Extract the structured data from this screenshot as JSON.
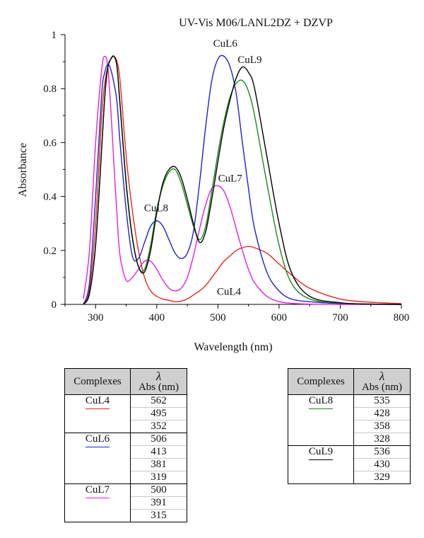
{
  "chart_data": {
    "type": "line",
    "title": "UV-Vis M06/LANL2DZ + DZVP",
    "xlabel": "Wavelength (nm)",
    "ylabel": "Absorbance",
    "xlim": [
      250,
      800
    ],
    "ylim": [
      0,
      1
    ],
    "xticks": [
      300,
      400,
      500,
      600,
      700,
      800
    ],
    "yticks": [
      0,
      0.2,
      0.4,
      0.6,
      0.8,
      1
    ],
    "ytick_labels": [
      "0",
      "0.2",
      "0.4",
      "0.6",
      "0.8",
      "1"
    ],
    "grid": false,
    "x": [
      280,
      290,
      300,
      310,
      315,
      320,
      325,
      330,
      335,
      340,
      350,
      360,
      370,
      380,
      390,
      400,
      410,
      420,
      430,
      440,
      450,
      460,
      470,
      480,
      490,
      500,
      510,
      520,
      530,
      540,
      550,
      560,
      580,
      600,
      620,
      650,
      700,
      750,
      800
    ],
    "series": [
      {
        "name": "CuL4",
        "color": "#e8281f",
        "values": [
          0.0,
          0.06,
          0.3,
          0.7,
          0.82,
          0.88,
          0.91,
          0.92,
          0.9,
          0.83,
          0.55,
          0.35,
          0.2,
          0.1,
          0.05,
          0.03,
          0.02,
          0.015,
          0.01,
          0.012,
          0.02,
          0.035,
          0.05,
          0.07,
          0.1,
          0.13,
          0.16,
          0.18,
          0.2,
          0.21,
          0.215,
          0.21,
          0.19,
          0.15,
          0.11,
          0.06,
          0.02,
          0.008,
          0.003
        ]
      },
      {
        "name": "CuL6",
        "color": "#2020d0",
        "values": [
          0.0,
          0.08,
          0.4,
          0.78,
          0.86,
          0.89,
          0.87,
          0.82,
          0.75,
          0.6,
          0.35,
          0.18,
          0.17,
          0.23,
          0.29,
          0.31,
          0.29,
          0.24,
          0.19,
          0.17,
          0.19,
          0.27,
          0.45,
          0.66,
          0.83,
          0.91,
          0.92,
          0.88,
          0.78,
          0.6,
          0.43,
          0.28,
          0.12,
          0.05,
          0.02,
          0.01,
          0.003,
          0.001,
          0.0
        ]
      },
      {
        "name": "CuL7",
        "color": "#e020e0",
        "values": [
          0.02,
          0.2,
          0.6,
          0.87,
          0.92,
          0.88,
          0.72,
          0.52,
          0.33,
          0.18,
          0.09,
          0.1,
          0.13,
          0.16,
          0.16,
          0.13,
          0.09,
          0.06,
          0.05,
          0.06,
          0.1,
          0.18,
          0.28,
          0.37,
          0.43,
          0.44,
          0.42,
          0.36,
          0.28,
          0.2,
          0.13,
          0.08,
          0.03,
          0.01,
          0.004,
          0.001,
          0.0,
          0.0,
          0.0
        ]
      },
      {
        "name": "CuL8",
        "color": "#1a8a1a",
        "values": [
          0.0,
          0.04,
          0.22,
          0.58,
          0.77,
          0.88,
          0.91,
          0.92,
          0.88,
          0.74,
          0.45,
          0.25,
          0.14,
          0.13,
          0.22,
          0.35,
          0.44,
          0.49,
          0.5,
          0.45,
          0.37,
          0.29,
          0.24,
          0.29,
          0.42,
          0.56,
          0.68,
          0.77,
          0.82,
          0.83,
          0.79,
          0.7,
          0.45,
          0.22,
          0.08,
          0.02,
          0.005,
          0.001,
          0.0
        ]
      },
      {
        "name": "CuL9",
        "color": "#000000",
        "values": [
          0.0,
          0.04,
          0.22,
          0.58,
          0.77,
          0.88,
          0.91,
          0.92,
          0.88,
          0.74,
          0.45,
          0.25,
          0.14,
          0.12,
          0.2,
          0.34,
          0.45,
          0.5,
          0.51,
          0.47,
          0.39,
          0.3,
          0.23,
          0.27,
          0.39,
          0.53,
          0.66,
          0.76,
          0.84,
          0.88,
          0.86,
          0.8,
          0.55,
          0.3,
          0.12,
          0.03,
          0.006,
          0.001,
          0.0
        ]
      }
    ],
    "annotations": [
      {
        "text": "CuL6",
        "x": 512,
        "y": 0.955
      },
      {
        "text": "CuL9",
        "x": 552,
        "y": 0.895
      },
      {
        "text": "CuL7",
        "x": 520,
        "y": 0.455
      },
      {
        "text": "CuL8",
        "x": 399,
        "y": 0.345
      },
      {
        "text": "CuL4",
        "x": 518,
        "y": 0.035
      }
    ]
  },
  "tables": [
    {
      "header_complexes": "Complexes",
      "header_lambda": "λ",
      "header_abs": "Abs (nm)",
      "groups": [
        {
          "name": "CuL4",
          "color": "#e8281f",
          "values": [
            "562",
            "495",
            "352"
          ]
        },
        {
          "name": "CuL6",
          "color": "#2020d0",
          "values": [
            "506",
            "413",
            "381",
            "319"
          ]
        },
        {
          "name": "CuL7",
          "color": "#e020e0",
          "values": [
            "500",
            "391",
            "315"
          ]
        }
      ]
    },
    {
      "header_complexes": "Complexes",
      "header_lambda": "λ",
      "header_abs": "Abs (nm)",
      "groups": [
        {
          "name": "CuL8",
          "color": "#1a8a1a",
          "values": [
            "535",
            "428",
            "358",
            "328"
          ]
        },
        {
          "name": "CuL9",
          "color": "#000000",
          "values": [
            "536",
            "430",
            "329"
          ]
        }
      ]
    }
  ]
}
